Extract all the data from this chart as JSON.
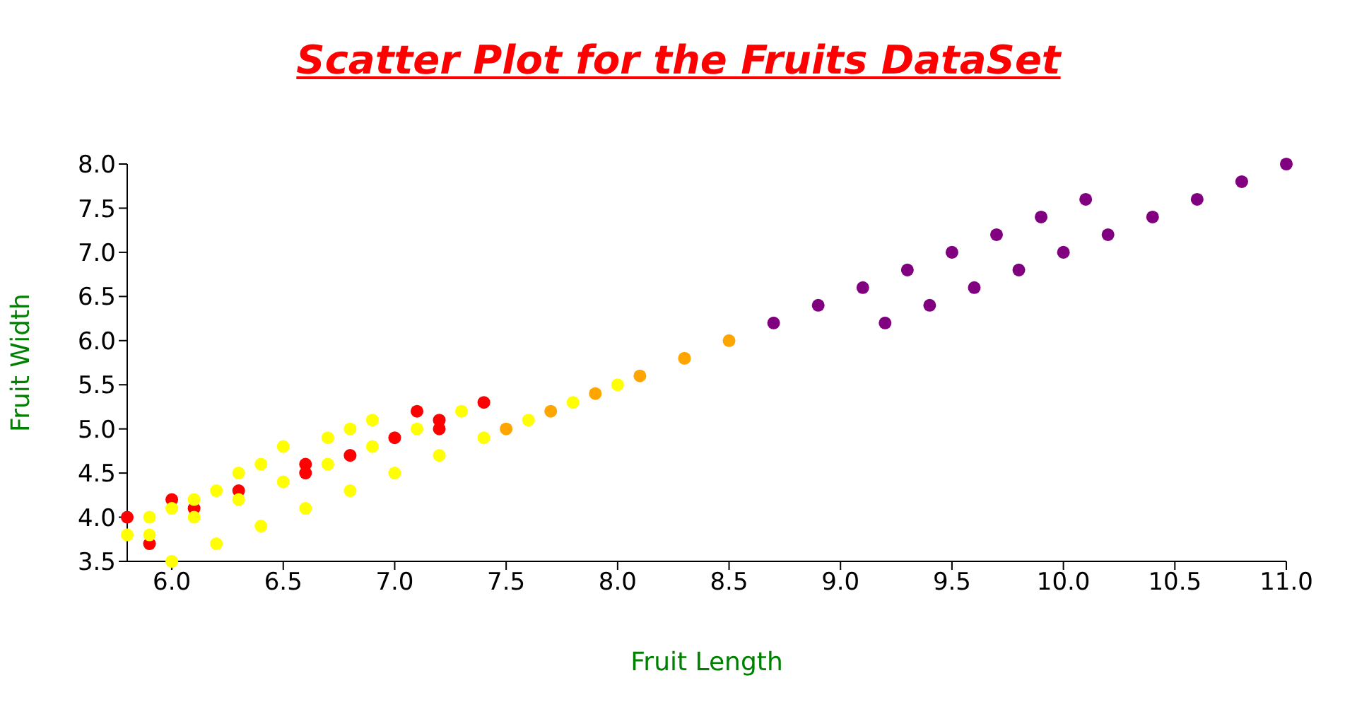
{
  "chart_data": {
    "type": "scatter",
    "title": "Scatter Plot for the Fruits DataSet",
    "xlabel": "Fruit Length",
    "ylabel": "Fruit Width",
    "xlim": [
      5.8,
      11.0
    ],
    "ylim": [
      3.5,
      8.0
    ],
    "xticks": [
      {
        "value": 6,
        "label": "6.0"
      },
      6.5,
      {
        "value": 7,
        "label": "7.0"
      },
      7.5,
      {
        "value": 8,
        "label": "8.0"
      },
      8.5,
      {
        "value": 9,
        "label": "9.0"
      },
      9.5,
      {
        "value": 10,
        "label": "10.0"
      },
      10.5,
      {
        "value": 11,
        "label": "11.0"
      }
    ],
    "yticks": [
      3.5,
      {
        "value": 4,
        "label": "4.0"
      },
      4.5,
      {
        "value": 5,
        "label": "5.0"
      },
      5.5,
      {
        "value": 6,
        "label": "6.0"
      },
      6.5,
      {
        "value": 7,
        "label": "7.0"
      },
      7.5,
      {
        "value": 8,
        "label": "8.0"
      }
    ],
    "grid": false,
    "legend": false,
    "marker": "circle",
    "series": [
      {
        "color": "#ff0000",
        "x": [
          5.8,
          5.9,
          6.0,
          6.1,
          6.3,
          6.6,
          6.6,
          6.8,
          7.0,
          7.1,
          7.2,
          7.2,
          7.4
        ],
        "values": [
          4.0,
          3.7,
          4.2,
          4.1,
          4.3,
          4.6,
          4.5,
          4.7,
          4.9,
          5.2,
          5.1,
          5.0,
          5.3
        ]
      },
      {
        "color": "#ffa500",
        "x": [
          7.5,
          7.7,
          7.9,
          8.1,
          8.3,
          8.5
        ],
        "values": [
          5.0,
          5.2,
          5.4,
          5.6,
          5.8,
          6.0
        ]
      },
      {
        "color": "#ffff00",
        "x": [
          5.8,
          5.9,
          5.9,
          6.0,
          6.0,
          6.1,
          6.1,
          6.2,
          6.2,
          6.3,
          6.3,
          6.4,
          6.4,
          6.5,
          6.5,
          6.6,
          6.7,
          6.7,
          6.8,
          6.8,
          6.9,
          6.9,
          7.0,
          7.1,
          7.2,
          7.3,
          7.4,
          7.6,
          7.8,
          8.0
        ],
        "values": [
          3.8,
          4.0,
          3.8,
          4.1,
          3.5,
          4.2,
          4.0,
          4.3,
          3.7,
          4.5,
          4.2,
          4.6,
          3.9,
          4.8,
          4.4,
          4.1,
          4.9,
          4.6,
          5.0,
          4.3,
          5.1,
          4.8,
          4.5,
          5.0,
          4.7,
          5.2,
          4.9,
          5.1,
          5.3,
          5.5
        ]
      },
      {
        "color": "#800080",
        "x": [
          8.7,
          8.9,
          9.1,
          9.3,
          9.5,
          9.7,
          9.9,
          10.1,
          9.2,
          9.4,
          9.6,
          9.8,
          10.0,
          10.2,
          10.4,
          10.6,
          10.8,
          11.0
        ],
        "values": [
          6.2,
          6.4,
          6.6,
          6.8,
          7.0,
          7.2,
          7.4,
          7.6,
          6.2,
          6.4,
          6.6,
          6.8,
          7.0,
          7.2,
          7.4,
          7.6,
          7.8,
          8.0
        ]
      }
    ]
  }
}
